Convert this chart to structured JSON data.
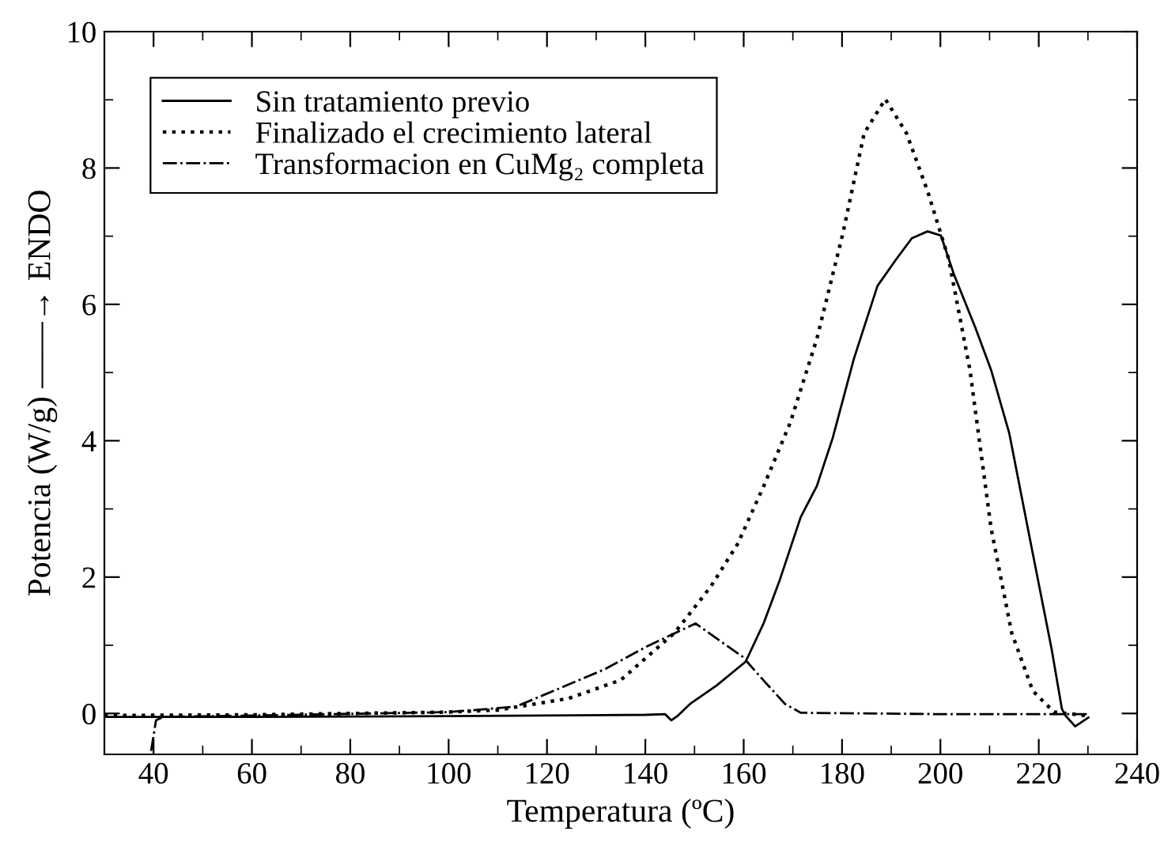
{
  "chart_data": {
    "type": "line",
    "xlabel": "Temperatura (ºC)",
    "ylabel": "Potencia (W/g) ——→ ENDO",
    "xlim": [
      30,
      240
    ],
    "xticks": [
      40,
      60,
      80,
      100,
      120,
      140,
      160,
      180,
      200,
      220,
      240
    ],
    "ylim": [
      -0.6,
      10
    ],
    "yticks": [
      0,
      2,
      4,
      6,
      8,
      10
    ],
    "grid": false,
    "legend": "top left",
    "marker": "none",
    "series": [
      {
        "name": "Sin tratamiento previo",
        "color": "#000000",
        "line_style": "solid",
        "x": [
          30,
          60,
          100,
          140,
          144,
          145.3,
          146.5,
          149.1,
          154.5,
          160.4,
          164.1,
          167.3,
          171.6,
          174.9,
          178.1,
          182.4,
          187.2,
          191.0,
          194.2,
          197.4,
          200.1,
          202.8,
          207.1,
          210.3,
          214.0,
          218.8,
          222.6,
          224.7,
          225.3,
          227.4,
          230.1
        ],
        "values": [
          -0.05,
          -0.05,
          -0.04,
          -0.02,
          -0.01,
          -0.1,
          -0.04,
          0.14,
          0.41,
          0.76,
          1.33,
          1.95,
          2.88,
          3.34,
          4.04,
          5.2,
          6.27,
          6.66,
          6.97,
          7.07,
          7.01,
          6.43,
          5.66,
          5.04,
          4.11,
          2.34,
          0.95,
          0.07,
          -0.02,
          -0.19,
          -0.06
        ]
      },
      {
        "name": "Finalizado el crecimiento lateral",
        "color": "#000000",
        "line_style": "dotted",
        "x": [
          30,
          60,
          100,
          110,
          124.4,
          135.0,
          145.9,
          148.0,
          153.4,
          158.8,
          164.1,
          169.5,
          174.9,
          180.2,
          184.5,
          188.8,
          193.1,
          197.4,
          201.7,
          206.0,
          210.3,
          214.5,
          218.8,
          223.1,
          229.6
        ],
        "values": [
          -0.03,
          -0.02,
          0.02,
          0.05,
          0.22,
          0.49,
          1.18,
          1.37,
          1.87,
          2.49,
          3.34,
          4.27,
          5.5,
          7.05,
          8.51,
          9.01,
          8.51,
          7.66,
          6.66,
          5.04,
          2.72,
          1.18,
          0.33,
          0.02,
          -0.03
        ]
      },
      {
        "name": "Transformacion en CuMg₂ completa",
        "color": "#000000",
        "line_style": "dashdot",
        "x": [
          39.5,
          40.5,
          42,
          60,
          100,
          113.7,
          131.8,
          140.5,
          150.2,
          154.5,
          159.8,
          164.1,
          168.4,
          171.6,
          200,
          230
        ],
        "values": [
          -0.55,
          -0.1,
          -0.05,
          -0.03,
          0.02,
          0.1,
          0.65,
          0.99,
          1.32,
          1.1,
          0.83,
          0.48,
          0.14,
          0.01,
          -0.01,
          -0.01
        ]
      }
    ]
  }
}
